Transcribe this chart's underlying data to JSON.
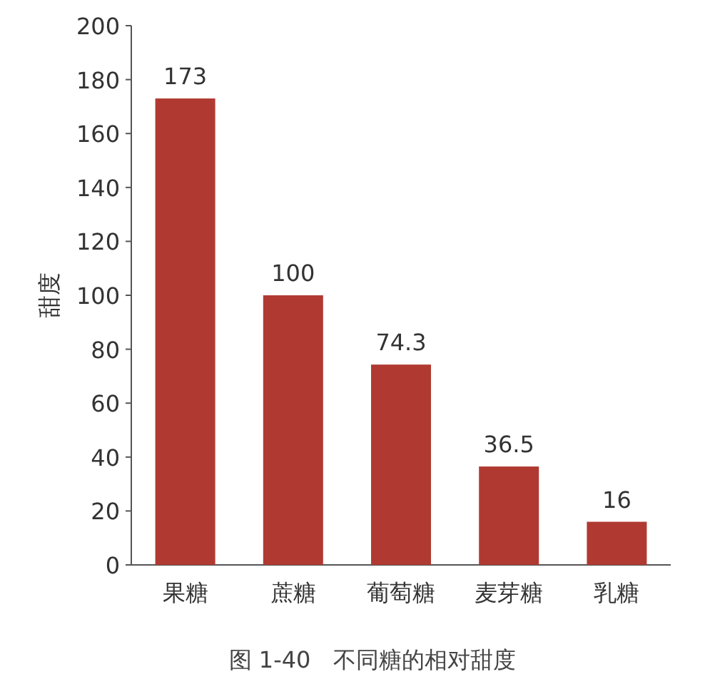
{
  "chart_data": {
    "type": "bar",
    "ylabel": "甜度",
    "categories": [
      "果糖",
      "蔗糖",
      "葡萄糖",
      "麦芽糖",
      "乳糖"
    ],
    "values": [
      173,
      100,
      74.3,
      36.5,
      16
    ],
    "color": "#b03a32",
    "value_labels": [
      "173",
      "100",
      "74.3",
      "36.5",
      "16"
    ],
    "ylim": [
      0,
      200
    ],
    "yticks": [
      0,
      20,
      40,
      60,
      80,
      100,
      120,
      140,
      160,
      180,
      200
    ],
    "annotations": [
      "图 1-40　不同糖的相对甜度"
    ]
  }
}
